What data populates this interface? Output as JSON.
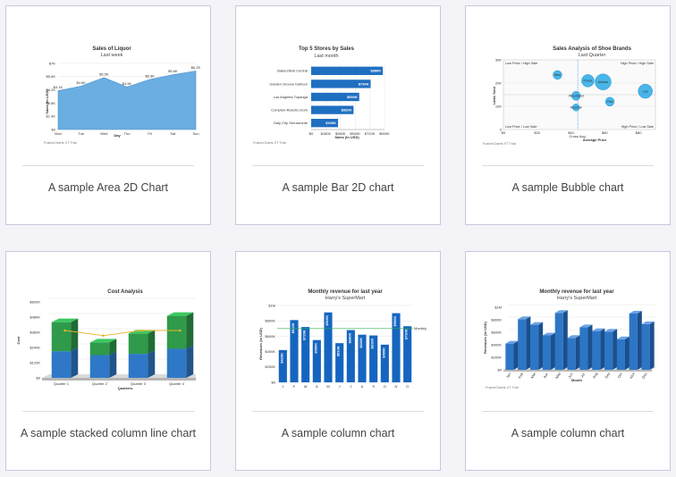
{
  "cards": [
    {
      "caption": "A sample Area 2D Chart"
    },
    {
      "caption": "A sample Bar 2D chart"
    },
    {
      "caption": "A sample Bubble chart"
    },
    {
      "caption": "A sample stacked column line chart"
    },
    {
      "caption": "A sample column chart"
    },
    {
      "caption": "A sample column chart"
    }
  ],
  "chart_data": [
    {
      "type": "area",
      "title": "Sales of Liquor",
      "subtitle": "Last week",
      "xlabel": "Day",
      "ylabel": "Sales (In USD)",
      "categories": [
        "Mon",
        "Tue",
        "Wed",
        "Thu",
        "Fri",
        "Sat",
        "Sun"
      ],
      "values": [
        4100,
        4600,
        5500,
        4500,
        5300,
        5800,
        6200
      ],
      "data_labels": [
        "$4.1K",
        "$4.6K",
        "$5.5K",
        "$4.5K",
        "$5.3K",
        "$5.8K",
        "$6.2K"
      ],
      "yticks": [
        "$0",
        "$1.4K",
        "$2.8K",
        "$4.2K",
        "$5.6K",
        "$7K"
      ],
      "ylim": [
        0,
        7000
      ],
      "fill_color": "#6aaee2",
      "trial_text": "FusionCharts XT Trial"
    },
    {
      "type": "bar",
      "title": "Top 5 Stores by Sales",
      "subtitle": "Last month",
      "xlabel": "Sales (In USD)",
      "ylabel": "",
      "categories": [
        "Bakersfield Central",
        "Garden Groove harbour",
        "Los Angeles Topanga",
        "Compton-Rancho Dom",
        "Daly City Serramonte"
      ],
      "values": [
        880000,
        730000,
        590000,
        520000,
        330000
      ],
      "data_labels": [
        "$880K",
        "$730K",
        "$590K",
        "$520K",
        "$330K"
      ],
      "xticks": [
        "$0",
        "$180K",
        "$360K",
        "$540K",
        "$720K",
        "$900K"
      ],
      "xlim": [
        0,
        900000
      ],
      "bar_color": "#1f6fc1",
      "trial_text": "FusionCharts XT Trial"
    },
    {
      "type": "scatter",
      "title": "Sales Analysis of Shoe Brands",
      "subtitle": "Last Quarter",
      "xlabel": "Average Price",
      "ylabel": "Units Sold",
      "xticks": [
        "$0",
        "$20",
        "$40",
        "$60",
        "$80"
      ],
      "yticks": [
        "0",
        "10K",
        "20K",
        "30K"
      ],
      "xlim": [
        0,
        90
      ],
      "ylim": [
        0,
        30000
      ],
      "quadrant_labels": [
        "Low Price / High Sale",
        "High Price / High Sale",
        "Low Price / Low Sale",
        "High Price / Low Sale"
      ],
      "avg_label": "Cross Avg.",
      "avg_x": 44,
      "bubbles": [
        {
          "name": "Nike",
          "x": 32,
          "y": 23500,
          "r": 5
        },
        {
          "name": "Puma",
          "x": 50,
          "y": 21000,
          "r": 7
        },
        {
          "name": "Adidas",
          "x": 59,
          "y": 20500,
          "r": 9
        },
        {
          "name": "Woodland",
          "x": 43,
          "y": 14500,
          "r": 5
        },
        {
          "name": "Fila",
          "x": 63,
          "y": 12000,
          "r": 5
        },
        {
          "name": "Reebok",
          "x": 43,
          "y": 9500,
          "r": 4
        },
        {
          "name": "Lee",
          "x": 84,
          "y": 16500,
          "r": 8
        }
      ],
      "bubble_color": "#29a9e6",
      "trial_text": "FusionCharts XT Trial"
    },
    {
      "type": "bar",
      "stacked": true,
      "title": "Cost Analysis",
      "xlabel": "Quarters",
      "ylabel": "Cost",
      "categories": [
        "Quarter 1",
        "Quarter 2",
        "Quarter 3",
        "Quarter 4"
      ],
      "series": [
        {
          "values": [
            210000,
            180000,
            190000,
            230000
          ],
          "color": "#2f78c7"
        },
        {
          "values": [
            230000,
            100000,
            160000,
            260000
          ],
          "color": "#2e9a4a"
        }
      ],
      "line": {
        "values": [
          360000,
          320000,
          360000,
          360000
        ],
        "color": "#e8b42a"
      },
      "yticks": [
        "$0",
        "$120K",
        "$240K",
        "$360K",
        "$480K",
        "$600K"
      ],
      "ylim": [
        0,
        600000
      ]
    },
    {
      "type": "bar",
      "title": "Monthly revenue for last year",
      "subtitle": "Harry's SuperMart",
      "xlabel": "",
      "ylabel": "Revenues (In USD)",
      "categories": [
        "J",
        "F",
        "M",
        "A",
        "M",
        "J",
        "J",
        "A",
        "S",
        "O",
        "N",
        "D"
      ],
      "values": [
        420000,
        810000,
        720000,
        550000,
        910000,
        510000,
        680000,
        620000,
        610000,
        490000,
        900000,
        730000
      ],
      "data_labels": [
        "$420K",
        "$810K",
        "$720K",
        "$550K",
        "$910K",
        "$510K",
        "$680K",
        "$620K",
        "$610K",
        "$490K",
        "$900K",
        "$730K"
      ],
      "yticks": [
        "$0",
        "$200K",
        "$400K",
        "$600K",
        "$800K",
        "$1M"
      ],
      "ylim": [
        0,
        1000000
      ],
      "trendline": {
        "value": 700000,
        "label": "Monthly",
        "color": "#2fae4a"
      },
      "bar_color": "#1565c0"
    },
    {
      "type": "bar",
      "title": "Monthly revenue for last year",
      "subtitle": "Harry's SuperMart",
      "xlabel": "Month",
      "ylabel": "Revenues (In USD)",
      "categories": [
        "Jan",
        "Feb",
        "Mar",
        "Apr",
        "May",
        "Jun",
        "Jul",
        "Aug",
        "Sep",
        "Oct",
        "Nov",
        "Dec"
      ],
      "values": [
        420000,
        810000,
        720000,
        550000,
        910000,
        510000,
        680000,
        620000,
        610000,
        490000,
        900000,
        730000
      ],
      "yticks": [
        "$0",
        "$200K",
        "$400K",
        "$600K",
        "$800K",
        "$1M"
      ],
      "ylim": [
        0,
        1000000
      ],
      "bar_color": "#2d76c6",
      "trial_text": "FusionCharts XT Trial"
    }
  ]
}
